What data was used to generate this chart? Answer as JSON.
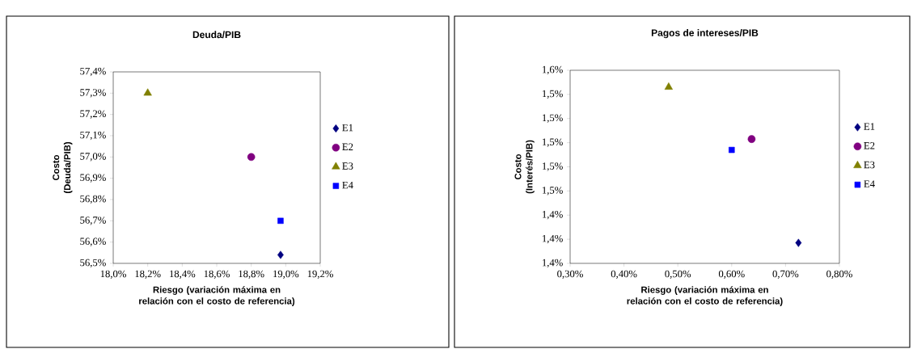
{
  "chart_data": [
    {
      "type": "scatter",
      "title": "Deuda/PIB",
      "xlabel": "Riesgo (variación máxima en relación con el costo de referencia)",
      "ylabel": "Costo (Deuda/PIB)",
      "legend": "right",
      "xlim": [
        18.0,
        19.2
      ],
      "ylim": [
        56.5,
        57.4
      ],
      "xticks": [
        {
          "value": 18.0,
          "label": "18,0%"
        },
        {
          "value": 18.2,
          "label": "18,2%"
        },
        {
          "value": 18.4,
          "label": "18,4%"
        },
        {
          "value": 18.6,
          "label": "18,6%"
        },
        {
          "value": 18.8,
          "label": "18,8%"
        },
        {
          "value": 19.0,
          "label": "19,0%"
        },
        {
          "value": 19.2,
          "label": "19,2%"
        }
      ],
      "yticks": [
        {
          "value": 56.5,
          "label": "56,5%"
        },
        {
          "value": 56.6,
          "label": "56,6%"
        },
        {
          "value": 56.7,
          "label": "56,7%"
        },
        {
          "value": 56.8,
          "label": "56,8%"
        },
        {
          "value": 56.9,
          "label": "56,9%"
        },
        {
          "value": 57.0,
          "label": "57,0%"
        },
        {
          "value": 57.1,
          "label": "57,1%"
        },
        {
          "value": 57.2,
          "label": "57,2%"
        },
        {
          "value": 57.3,
          "label": "57,3%"
        },
        {
          "value": 57.4,
          "label": "57,4%"
        }
      ],
      "series": [
        {
          "name": "E1",
          "color": "#000080",
          "marker": "diamond",
          "x": [
            18.97
          ],
          "values": [
            56.54
          ]
        },
        {
          "name": "E2",
          "color": "#800080",
          "marker": "circle",
          "x": [
            18.8
          ],
          "values": [
            57.0
          ]
        },
        {
          "name": "E3",
          "color": "#808000",
          "marker": "triangle",
          "x": [
            18.2
          ],
          "values": [
            57.3
          ]
        },
        {
          "name": "E4",
          "color": "#0000ff",
          "marker": "square",
          "x": [
            18.97
          ],
          "values": [
            56.7
          ]
        }
      ]
    },
    {
      "type": "scatter",
      "title": "Pagos de intereses/PIB",
      "xlabel": "Riesgo (variación máxima en relación con el costo de referencia)",
      "ylabel": "Costo (Interés/PIB)",
      "legend": "right",
      "xlim": [
        0.3,
        0.8
      ],
      "ylim": [
        1.4,
        1.56
      ],
      "xticks": [
        {
          "value": 0.3,
          "label": "0,30%"
        },
        {
          "value": 0.4,
          "label": "0,40%"
        },
        {
          "value": 0.5,
          "label": "0,50%"
        },
        {
          "value": 0.6,
          "label": "0,60%"
        },
        {
          "value": 0.7,
          "label": "0,70%"
        },
        {
          "value": 0.8,
          "label": "0,80%"
        }
      ],
      "yticks": [
        {
          "value": 1.4,
          "label": "1,4%"
        },
        {
          "value": 1.42,
          "label": "1,4%"
        },
        {
          "value": 1.44,
          "label": "1,4%"
        },
        {
          "value": 1.46,
          "label": "1,5%"
        },
        {
          "value": 1.48,
          "label": "1,5%"
        },
        {
          "value": 1.5,
          "label": "1,5%"
        },
        {
          "value": 1.52,
          "label": "1,5%"
        },
        {
          "value": 1.54,
          "label": "1,5%"
        },
        {
          "value": 1.56,
          "label": "1,6%"
        }
      ],
      "series": [
        {
          "name": "E1",
          "color": "#000080",
          "marker": "diamond",
          "x": [
            0.724
          ],
          "values": [
            1.417
          ]
        },
        {
          "name": "E2",
          "color": "#800080",
          "marker": "circle",
          "x": [
            0.637
          ],
          "values": [
            1.503
          ]
        },
        {
          "name": "E3",
          "color": "#808000",
          "marker": "triangle",
          "x": [
            0.483
          ],
          "values": [
            1.546
          ]
        },
        {
          "name": "E4",
          "color": "#0000ff",
          "marker": "square",
          "x": [
            0.6
          ],
          "values": [
            1.494
          ]
        }
      ]
    }
  ]
}
